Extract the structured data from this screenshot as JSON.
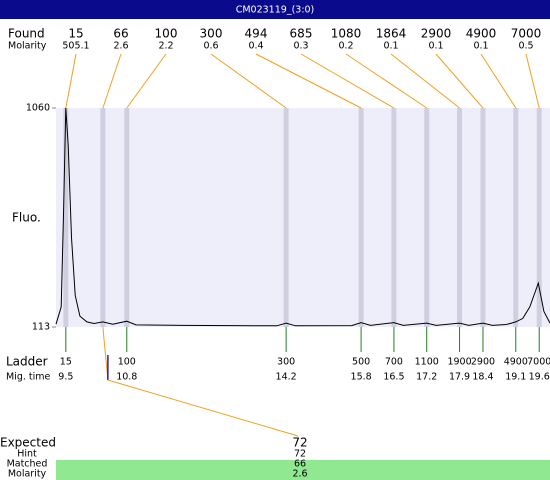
{
  "title": "CM023119_(3:0)",
  "chart_data": {
    "type": "line",
    "y_label": "Fluo.",
    "x": [
      9.29,
      9.4,
      9.45,
      9.5,
      9.55,
      9.62,
      9.7,
      9.8,
      9.95,
      10.1,
      10.29,
      10.5,
      10.8,
      11.0,
      12.0,
      14.0,
      14.2,
      14.4,
      15.6,
      15.8,
      16.0,
      16.5,
      16.7,
      17.2,
      17.4,
      17.9,
      18.1,
      18.4,
      18.6,
      18.9,
      19.1,
      19.25,
      19.4,
      19.58,
      19.7,
      19.83
    ],
    "values": [
      125,
      200,
      600,
      1060,
      900,
      500,
      250,
      160,
      135,
      128,
      135,
      125,
      138,
      122,
      120,
      118,
      130,
      118,
      119,
      132,
      120,
      132,
      120,
      130,
      120,
      130,
      120,
      130,
      120,
      124,
      135,
      150,
      200,
      303,
      180,
      130
    ],
    "color": "#000000",
    "xlim": [
      9.29,
      19.83
    ],
    "ylim": [
      113,
      1060
    ],
    "yticks": [
      113,
      1060
    ]
  },
  "found": {
    "label": "Found",
    "molarity_label": "Molarity",
    "sizes": [
      15,
      66,
      100,
      300,
      494,
      685,
      1080,
      1864,
      2900,
      4900,
      7000
    ],
    "molarity": [
      505.1,
      2.6,
      2.2,
      0.6,
      0.4,
      0.3,
      0.2,
      0.1,
      0.1,
      0.1,
      0.5
    ],
    "mig_time": [
      9.5,
      10.29,
      10.8,
      14.2,
      15.8,
      16.5,
      17.2,
      17.9,
      18.4,
      19.1,
      19.6
    ]
  },
  "ladder": {
    "label": "Ladder",
    "time_label": "Mig. time",
    "sizes": [
      15,
      100,
      300,
      500,
      700,
      1100,
      1900,
      2900,
      4900,
      7000
    ],
    "mig_time": [
      9.5,
      10.8,
      14.2,
      15.8,
      16.5,
      17.2,
      17.9,
      18.4,
      19.1,
      19.6
    ]
  },
  "expected": {
    "label": "Expected",
    "value": 72,
    "hint_label": "Hint",
    "hint": 72,
    "matched_label": "Matched",
    "matched": 66,
    "molarity_label": "Molarity",
    "molarity": 2.6
  }
}
